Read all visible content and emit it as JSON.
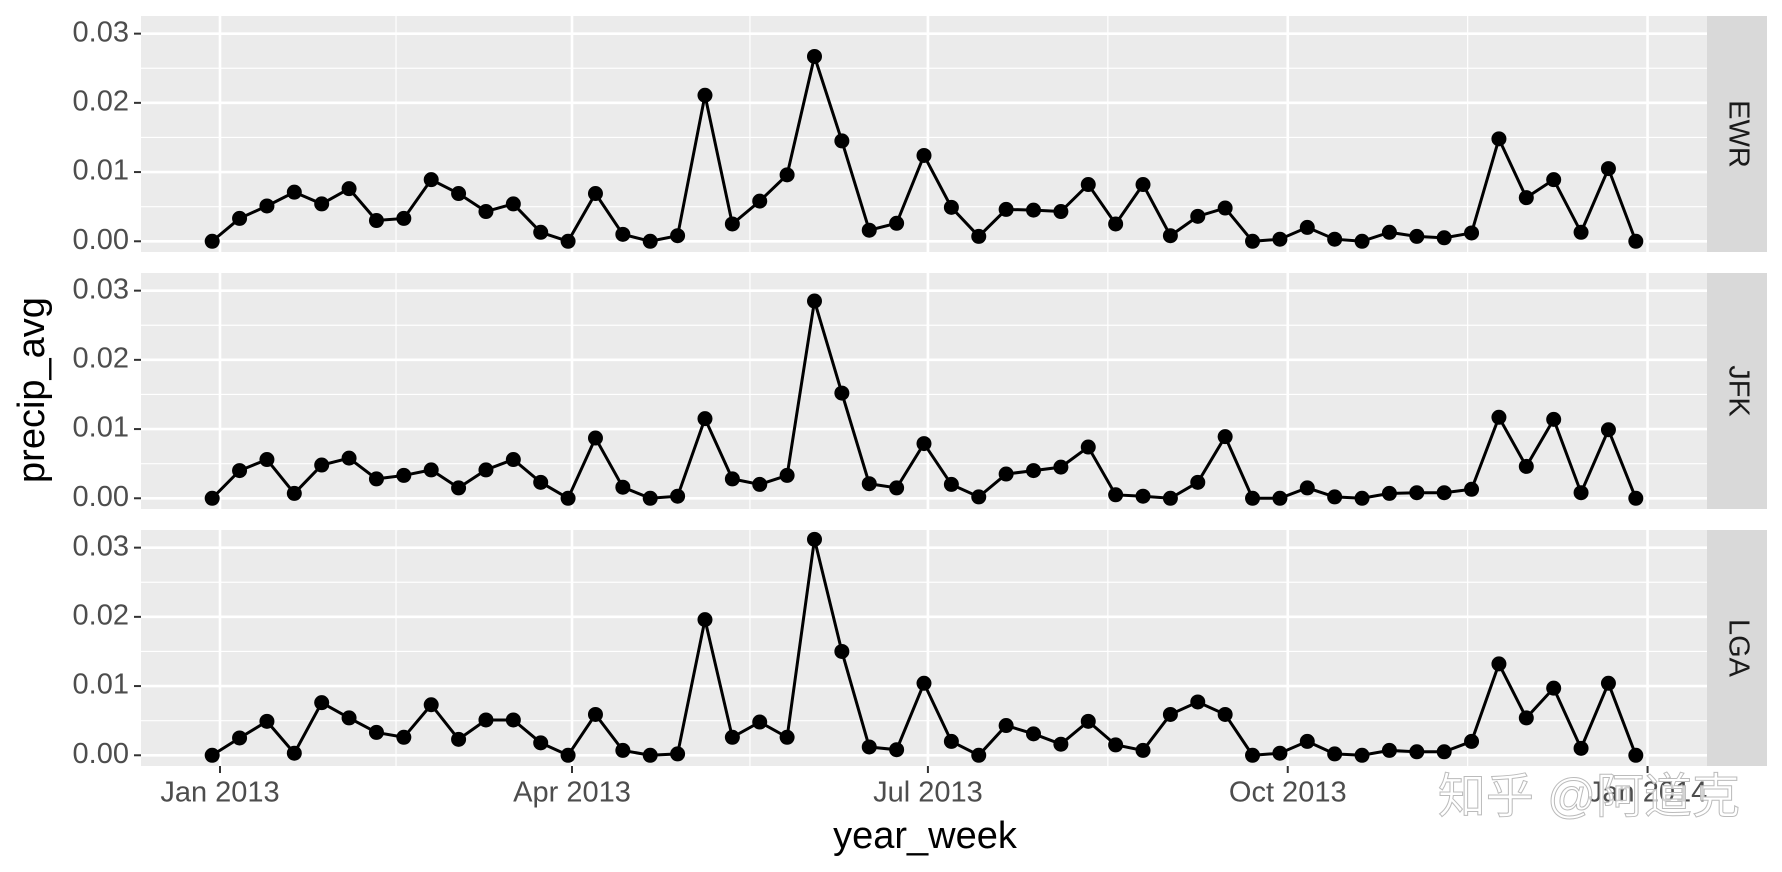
{
  "chart_data": {
    "type": "line",
    "facets": true,
    "x_label": "year_week",
    "y_label": "precip_avg",
    "annotation": "知乎 @阿道克",
    "x": [
      0,
      1,
      2,
      3,
      4,
      5,
      6,
      7,
      8,
      9,
      10,
      11,
      12,
      13,
      14,
      15,
      16,
      17,
      18,
      19,
      20,
      21,
      22,
      23,
      24,
      25,
      26,
      27,
      28,
      29,
      30,
      31,
      32,
      33,
      34,
      35,
      36,
      37,
      38,
      39,
      40,
      41,
      42,
      43,
      44,
      45,
      46,
      47,
      48,
      49,
      50,
      51,
      52
    ],
    "xlim": [
      -2.6,
      54.6
    ],
    "xticks": [
      {
        "value": 0.286,
        "label": "Jan 2013"
      },
      {
        "value": 13.143,
        "label": "Apr 2013"
      },
      {
        "value": 26.143,
        "label": "Jul 2013"
      },
      {
        "value": 39.286,
        "label": "Oct 2013"
      },
      {
        "value": 52.429,
        "label": "Jan 2014"
      }
    ],
    "ylim": [
      -0.00155,
      0.03255
    ],
    "yticks": [
      {
        "value": 0,
        "label": "0.00"
      },
      {
        "value": 0.01,
        "label": "0.01"
      },
      {
        "value": 0.02,
        "label": "0.02"
      },
      {
        "value": 0.03,
        "label": "0.03"
      }
    ],
    "grid": true,
    "series": [
      {
        "name": "EWR",
        "color": "#000000",
        "values": [
          0,
          0.0033,
          0.0051,
          0.0071,
          0.0054,
          0.0076,
          0.003,
          0.0033,
          0.0089,
          0.0069,
          0.0043,
          0.0054,
          0.0013,
          0,
          0.0069,
          0.001,
          0,
          0.0008,
          0.0211,
          0.0025,
          0.0058,
          0.0096,
          0.0267,
          0.0145,
          0.0016,
          0.0026,
          0.0124,
          0.0049,
          0.0007,
          0.0046,
          0.0045,
          0.0043,
          0.0082,
          0.0025,
          0.0082,
          0.0008,
          0.0036,
          0.0048,
          0,
          0.0003,
          0.002,
          0.0003,
          0,
          0.0013,
          0.0007,
          0.0005,
          0.0012,
          0.0148,
          0.0063,
          0.0089,
          0.0013,
          0.0105,
          0
        ]
      },
      {
        "name": "JFK",
        "color": "#000000",
        "values": [
          0,
          0.004,
          0.0056,
          0.0007,
          0.0048,
          0.0058,
          0.0028,
          0.0033,
          0.0041,
          0.0015,
          0.0041,
          0.0056,
          0.0023,
          0,
          0.0087,
          0.0016,
          0,
          0.0003,
          0.0115,
          0.0028,
          0.002,
          0.0033,
          0.0285,
          0.0152,
          0.0021,
          0.0015,
          0.0079,
          0.002,
          0.0002,
          0.0035,
          0.004,
          0.0045,
          0.0074,
          0.0005,
          0.0003,
          0,
          0.0023,
          0.0089,
          0,
          0,
          0.0015,
          0.0002,
          0,
          0.0007,
          0.0008,
          0.0008,
          0.0013,
          0.0117,
          0.0046,
          0.0114,
          0.0008,
          0.0099,
          0
        ]
      },
      {
        "name": "LGA",
        "color": "#000000",
        "values": [
          0,
          0.0025,
          0.0049,
          0.0003,
          0.0076,
          0.0054,
          0.0033,
          0.0026,
          0.0073,
          0.0023,
          0.0051,
          0.0051,
          0.0018,
          0,
          0.0059,
          0.0007,
          0,
          0.0002,
          0.0196,
          0.0026,
          0.0048,
          0.0026,
          0.0312,
          0.015,
          0.0012,
          0.0008,
          0.0104,
          0.002,
          0,
          0.0043,
          0.0031,
          0.0016,
          0.0049,
          0.0015,
          0.0007,
          0.0059,
          0.0077,
          0.0059,
          0,
          0.0003,
          0.002,
          0.0002,
          0,
          0.0007,
          0.0005,
          0.0005,
          0.002,
          0.0132,
          0.0054,
          0.0097,
          0.001,
          0.0104,
          0
        ]
      }
    ]
  }
}
